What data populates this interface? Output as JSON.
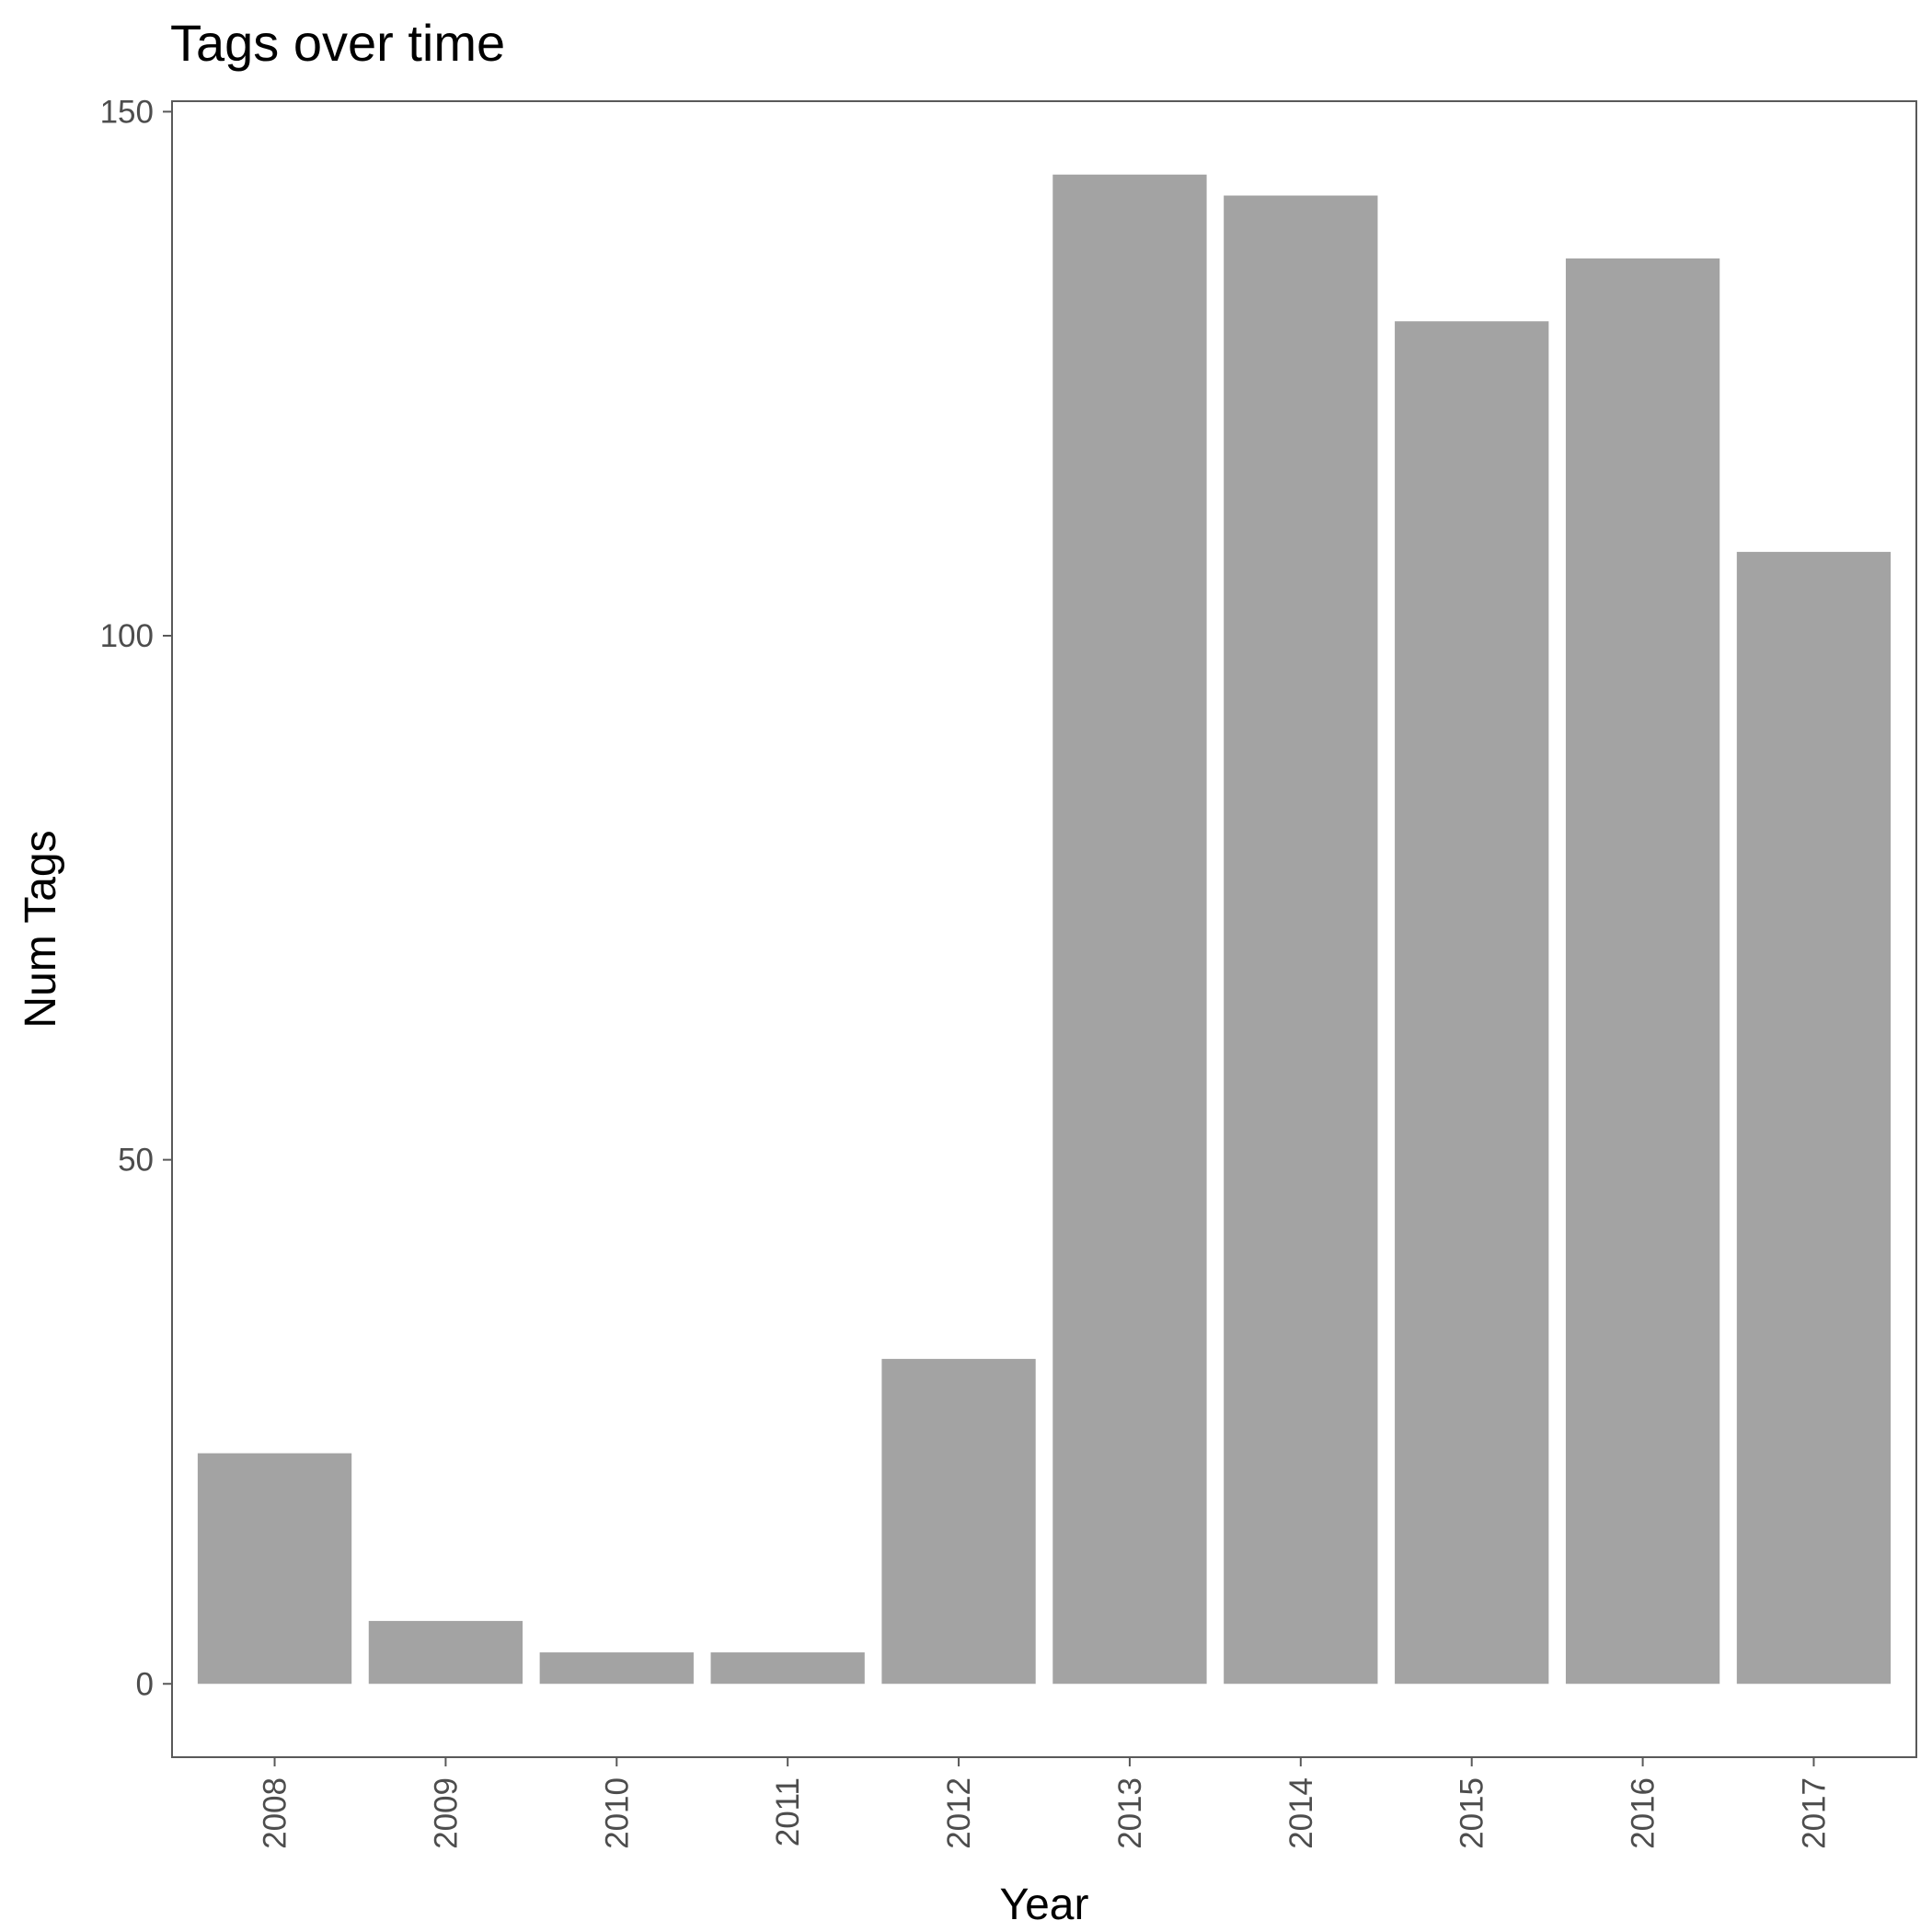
{
  "chart_data": {
    "type": "bar",
    "title": "Tags over time",
    "xlabel": "Year",
    "ylabel": "Num Tags",
    "categories": [
      "2008",
      "2009",
      "2010",
      "2011",
      "2012",
      "2013",
      "2014",
      "2015",
      "2016",
      "2017"
    ],
    "values": [
      22,
      6,
      3,
      3,
      31,
      144,
      142,
      130,
      136,
      108
    ],
    "ylim": [
      -7,
      151
    ],
    "yticks": [
      0,
      50,
      100,
      150
    ],
    "grid": false,
    "legend": "none",
    "colors": {
      "bar": "#a3a3a3",
      "panel_border": "#595959",
      "tick": "#595959",
      "tick_label": "#4d4d4d",
      "text": "#000000"
    }
  }
}
